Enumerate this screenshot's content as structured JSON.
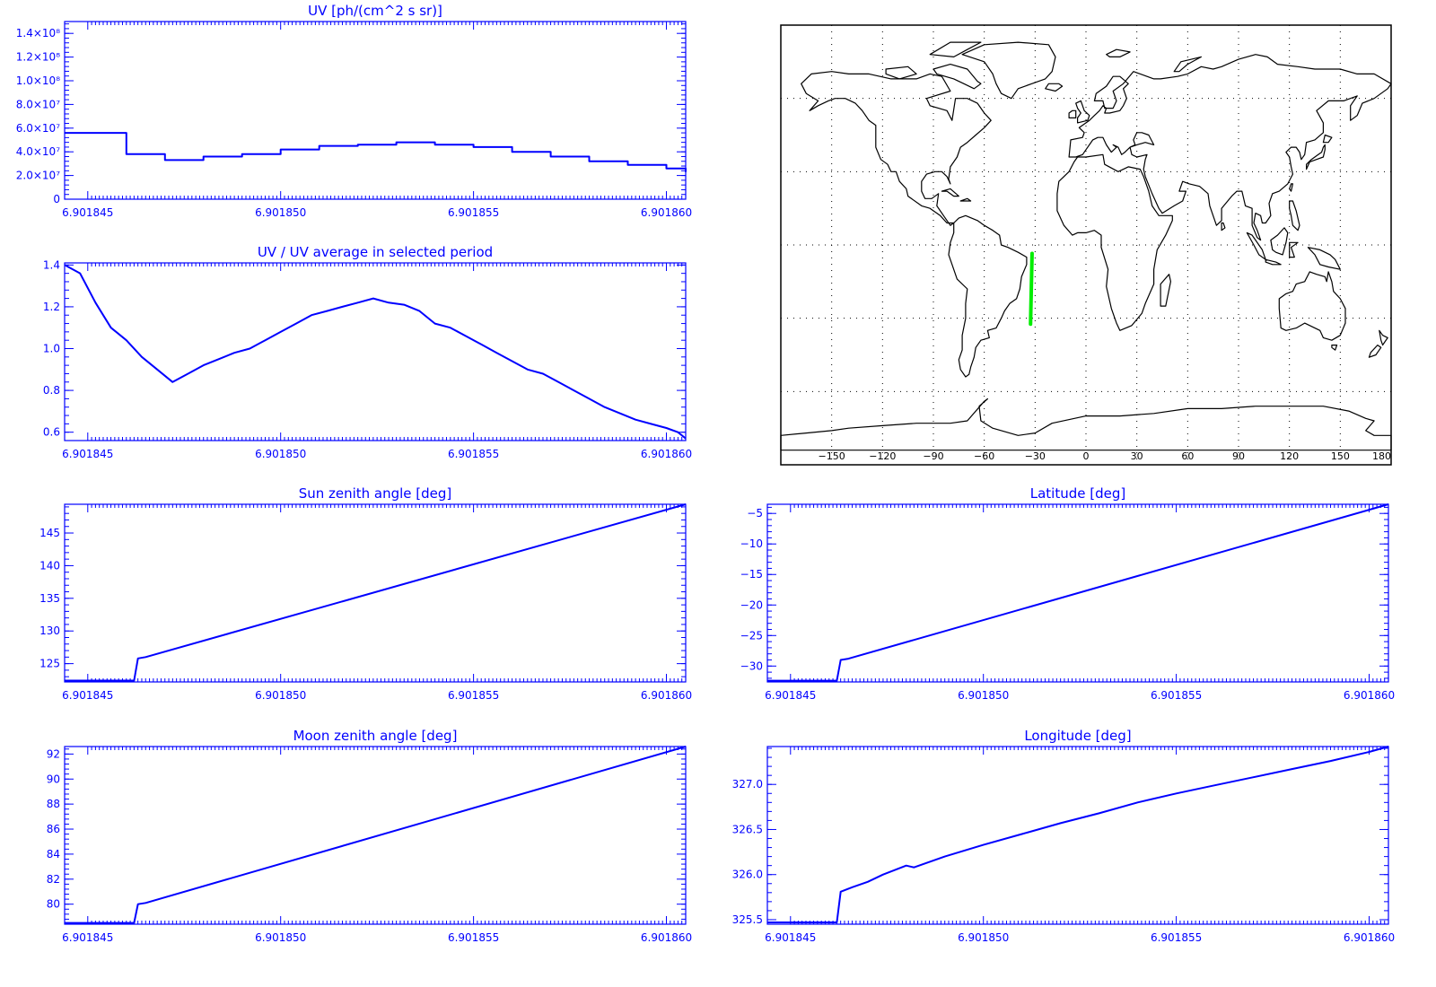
{
  "x_tick_labels": [
    "6.901845",
    "6.901850",
    "6.901855",
    "6.901860"
  ],
  "colors": {
    "axis": "#0000ff",
    "line": "#0000ff",
    "track": "#00ee00",
    "map_line": "#000000",
    "map_grid": "#000000"
  },
  "chart_data": [
    {
      "id": "uv",
      "type": "line",
      "style": "histogram",
      "title": "UV [ph/(cm^2 s sr)]",
      "xlim": [
        6.9018444,
        6.9018605
      ],
      "ylim": [
        0,
        150000000
      ],
      "ytick_labels": [
        "0",
        "2.0×10⁷",
        "4.0×10⁷",
        "6.0×10⁷",
        "8.0×10⁷",
        "1.0×10⁸",
        "1.2×10⁸",
        "1.4×10⁸"
      ],
      "ytick_values": [
        0,
        20000000,
        40000000,
        60000000,
        80000000,
        100000000,
        120000000,
        140000000
      ],
      "x": [
        6.9018444,
        6.901846,
        6.901847,
        6.901848,
        6.901849,
        6.90185,
        6.901851,
        6.901852,
        6.901853,
        6.901854,
        6.901855,
        6.901856,
        6.901857,
        6.901858,
        6.901859,
        6.90186,
        6.9018605
      ],
      "y": [
        56000000,
        38000000,
        33000000,
        36000000,
        38000000,
        42000000,
        45000000,
        46000000,
        48000000,
        46000000,
        44000000,
        40000000,
        36000000,
        32000000,
        29000000,
        26000000,
        23000000
      ]
    },
    {
      "id": "uv_ratio",
      "type": "line",
      "title": "UV / UV average in selected period",
      "xlim": [
        6.9018444,
        6.9018605
      ],
      "ylim": [
        0.56,
        1.41
      ],
      "ytick_labels": [
        "0.6",
        "0.8",
        "1.0",
        "1.2",
        "1.4"
      ],
      "ytick_values": [
        0.6,
        0.8,
        1.0,
        1.2,
        1.4
      ],
      "x": [
        6.9018444,
        6.9018448,
        6.9018452,
        6.9018456,
        6.901846,
        6.9018464,
        6.9018468,
        6.9018472,
        6.9018476,
        6.901848,
        6.9018484,
        6.9018488,
        6.9018492,
        6.9018496,
        6.90185,
        6.9018504,
        6.9018508,
        6.9018512,
        6.9018516,
        6.901852,
        6.9018524,
        6.9018528,
        6.9018532,
        6.9018536,
        6.901854,
        6.9018544,
        6.9018548,
        6.9018552,
        6.9018556,
        6.901856,
        6.9018564,
        6.9018568,
        6.9018572,
        6.9018576,
        6.901858,
        6.9018584,
        6.9018588,
        6.9018592,
        6.9018596,
        6.90186,
        6.9018603,
        6.9018605
      ],
      "y": [
        1.4,
        1.36,
        1.22,
        1.1,
        1.04,
        0.96,
        0.9,
        0.84,
        0.88,
        0.92,
        0.95,
        0.98,
        1.0,
        1.04,
        1.08,
        1.12,
        1.16,
        1.18,
        1.2,
        1.22,
        1.24,
        1.22,
        1.21,
        1.18,
        1.12,
        1.1,
        1.06,
        1.02,
        0.98,
        0.94,
        0.9,
        0.88,
        0.84,
        0.8,
        0.76,
        0.72,
        0.69,
        0.66,
        0.64,
        0.62,
        0.6,
        0.57
      ]
    },
    {
      "id": "sun_zenith",
      "type": "line",
      "title": "Sun zenith angle [deg]",
      "xlim": [
        6.9018444,
        6.9018605
      ],
      "ylim": [
        122.2,
        149.4
      ],
      "ytick_labels": [
        "125",
        "130",
        "135",
        "140",
        "145"
      ],
      "ytick_values": [
        125,
        130,
        135,
        140,
        145
      ],
      "x": [
        6.9018444,
        6.9018462,
        6.9018463,
        6.9018465,
        6.9018605
      ],
      "y": [
        122.4,
        122.4,
        125.8,
        126.0,
        149.4
      ]
    },
    {
      "id": "latitude",
      "type": "line",
      "title": "Latitude [deg]",
      "xlim": [
        6.9018444,
        6.9018605
      ],
      "ylim": [
        -32.6,
        -3.5
      ],
      "ytick_labels": [
        "−30",
        "−25",
        "−20",
        "−15",
        "−10",
        "−5"
      ],
      "ytick_values": [
        -30,
        -25,
        -20,
        -15,
        -10,
        -5
      ],
      "x": [
        6.9018444,
        6.9018462,
        6.9018463,
        6.9018465,
        6.9018605
      ],
      "y": [
        -32.4,
        -32.4,
        -29.0,
        -28.8,
        -3.5
      ]
    },
    {
      "id": "moon_zenith",
      "type": "line",
      "title": "Moon zenith angle [deg]",
      "xlim": [
        6.9018444,
        6.9018605
      ],
      "ylim": [
        78.4,
        92.6
      ],
      "ytick_labels": [
        "80",
        "82",
        "84",
        "86",
        "88",
        "90",
        "92"
      ],
      "ytick_values": [
        80,
        82,
        84,
        86,
        88,
        90,
        92
      ],
      "x": [
        6.9018444,
        6.9018462,
        6.9018463,
        6.9018465,
        6.9018605
      ],
      "y": [
        78.5,
        78.5,
        80.0,
        80.1,
        92.6
      ]
    },
    {
      "id": "longitude",
      "type": "line",
      "title": "Longitude [deg]",
      "xlim": [
        6.9018444,
        6.9018605
      ],
      "ylim": [
        325.45,
        327.42
      ],
      "ytick_labels": [
        "325.5",
        "326.0",
        "326.5",
        "327.0"
      ],
      "ytick_values": [
        325.5,
        326.0,
        326.5,
        327.0
      ],
      "x": [
        6.9018444,
        6.9018462,
        6.9018463,
        6.9018466,
        6.901847,
        6.9018474,
        6.901848,
        6.9018482,
        6.901849,
        6.90185,
        6.901851,
        6.901852,
        6.901853,
        6.901854,
        6.901855,
        6.901856,
        6.901857,
        6.901858,
        6.901859,
        6.90186,
        6.9018605
      ],
      "y": [
        325.47,
        325.47,
        325.81,
        325.86,
        325.92,
        326.0,
        326.1,
        326.08,
        326.2,
        326.33,
        326.45,
        326.57,
        326.68,
        326.8,
        326.9,
        326.99,
        327.08,
        327.17,
        327.26,
        327.36,
        327.42
      ]
    }
  ],
  "map": {
    "xtick_labels": [
      "−150",
      "−120",
      "−90",
      "−60",
      "−30",
      "0",
      "30",
      "60",
      "90",
      "120",
      "150",
      "180"
    ],
    "lon_ticks": [
      -150,
      -120,
      -90,
      -60,
      -30,
      0,
      30,
      60,
      90,
      120,
      150,
      180
    ],
    "lat_grid": [
      60,
      30,
      0,
      -30,
      -60
    ],
    "track": {
      "lon": [
        -32.7,
        -31.8
      ],
      "lat": [
        -32.4,
        -3.5
      ]
    }
  }
}
